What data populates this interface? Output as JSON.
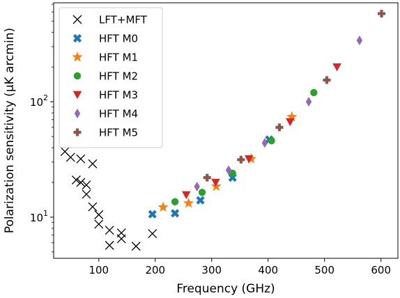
{
  "chart_data": {
    "type": "scatter",
    "xlabel": "Frequency (GHz)",
    "ylabel": "Polarization sensitivity (μK arcmin)",
    "xlim": [
      20,
      630
    ],
    "ylim": [
      4.4,
      720
    ],
    "yscale": "log",
    "grid": false,
    "legend_position": "upper-left",
    "x_ticks": [
      100,
      200,
      300,
      400,
      500,
      600
    ],
    "y_ticks": [
      {
        "value": 10,
        "mantissa": "10",
        "exponent": "1"
      },
      {
        "value": 100,
        "mantissa": "10",
        "exponent": "2"
      }
    ],
    "series": [
      {
        "name": "LFT+MFT",
        "marker": "x",
        "color": "#000000",
        "points": [
          [
            40,
            37
          ],
          [
            50,
            33
          ],
          [
            60,
            21
          ],
          [
            68,
            32
          ],
          [
            68,
            20
          ],
          [
            78,
            19
          ],
          [
            78,
            15.8
          ],
          [
            89,
            29
          ],
          [
            89,
            12.3
          ],
          [
            100,
            10.5
          ],
          [
            100,
            8.7
          ],
          [
            119,
            7.7
          ],
          [
            119,
            5.7
          ],
          [
            140,
            7.3
          ],
          [
            140,
            6.5
          ],
          [
            166,
            5.6
          ],
          [
            195,
            7.2
          ]
        ]
      },
      {
        "name": "HFT M0",
        "marker": "X",
        "color": "#1f77b4",
        "points": [
          [
            195,
            10.6
          ],
          [
            235,
            10.8
          ],
          [
            280,
            14
          ],
          [
            337,
            22
          ],
          [
            402,
            47
          ]
        ]
      },
      {
        "name": "HFT M1",
        "marker": "star",
        "color": "#ff7f0e",
        "points": [
          [
            214,
            12.2
          ],
          [
            259,
            13.2
          ],
          [
            308,
            18.5
          ],
          [
            370,
            32
          ],
          [
            442,
            74
          ]
        ]
      },
      {
        "name": "HFT M2",
        "marker": "circle",
        "color": "#2ca02c",
        "points": [
          [
            235,
            13.6
          ],
          [
            283,
            16.4
          ],
          [
            337,
            24
          ],
          [
            406,
            46
          ],
          [
            481,
            120
          ]
        ]
      },
      {
        "name": "HFT M3",
        "marker": "triangle-down",
        "color": "#d62728",
        "points": [
          [
            255,
            15.6
          ],
          [
            307,
            20
          ],
          [
            366,
            32
          ],
          [
            439,
            67
          ],
          [
            522,
            200
          ]
        ]
      },
      {
        "name": "HFT M4",
        "marker": "diamond",
        "color": "#9467bd",
        "points": [
          [
            274,
            18.4
          ],
          [
            330,
            25.5
          ],
          [
            394,
            44
          ],
          [
            472,
            100
          ],
          [
            562,
            340
          ]
        ]
      },
      {
        "name": "HFT M5",
        "marker": "plus",
        "color": "#8c564b",
        "points": [
          [
            292,
            22
          ],
          [
            352,
            31.5
          ],
          [
            420,
            60
          ],
          [
            504,
            154
          ],
          [
            601,
            580
          ]
        ]
      }
    ]
  }
}
